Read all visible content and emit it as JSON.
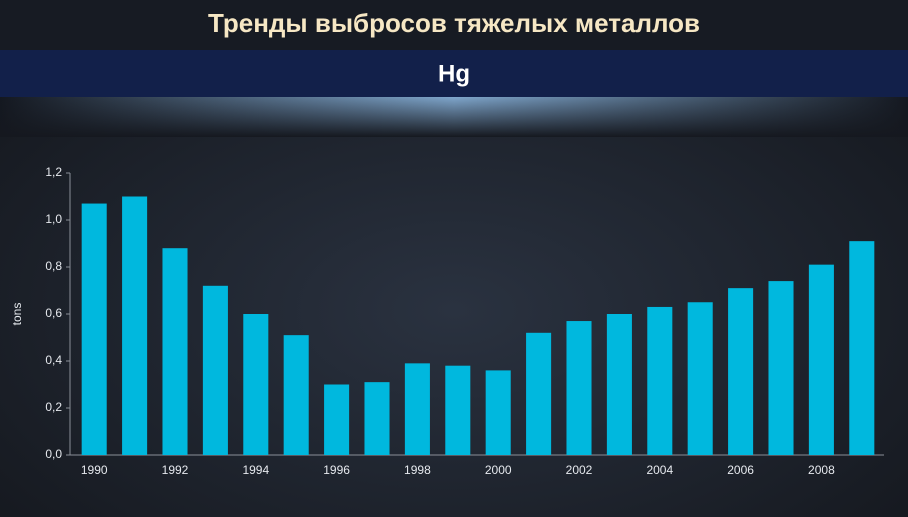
{
  "chart_data": {
    "type": "bar",
    "title": "Тренды выбросов тяжелых металлов",
    "subtitle": "Hg",
    "y_label": "tons",
    "categories": [
      "1990",
      null,
      "1992",
      null,
      "1994",
      null,
      "1996",
      null,
      "1998",
      null,
      "2000",
      null,
      "2002",
      null,
      "2004",
      null,
      "2006",
      null,
      "2008",
      null
    ],
    "values": [
      1.07,
      1.1,
      0.88,
      0.72,
      0.6,
      0.51,
      0.3,
      0.31,
      0.39,
      0.38,
      0.36,
      0.52,
      0.57,
      0.6,
      0.63,
      0.65,
      0.71,
      0.74,
      0.81,
      0.91
    ],
    "color": "#00b8de",
    "ylim": [
      0,
      1.2
    ],
    "yticks": [
      {
        "value": 0,
        "label": "0,0"
      },
      {
        "value": 0.2,
        "label": "0,2"
      },
      {
        "value": 0.4,
        "label": "0,4"
      },
      {
        "value": 0.6,
        "label": "0,6"
      },
      {
        "value": 0.8,
        "label": "0,8"
      },
      {
        "value": 1.0,
        "label": "1,0"
      },
      {
        "value": 1.2,
        "label": "1,2"
      }
    ],
    "grid": false
  }
}
